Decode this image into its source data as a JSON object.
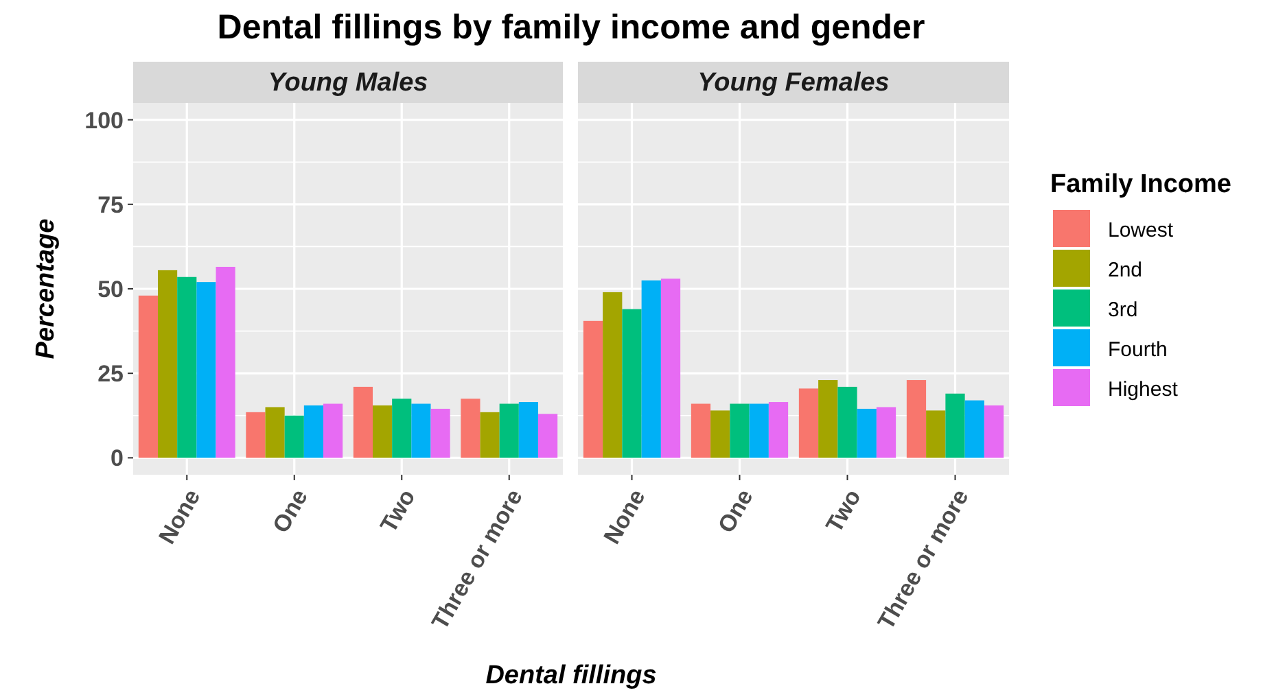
{
  "chart_data": [
    {
      "type": "bar",
      "title": "Dental fillings by family income and gender",
      "subtitle": "Young Males",
      "xlabel": "Dental fillings",
      "ylabel": "Percentage",
      "legend_title": "Family Income",
      "legend": "right",
      "categories": [
        "None",
        "One",
        "Two",
        "Three or more"
      ],
      "ylim": [
        -5,
        105
      ],
      "yticks": [
        0,
        25,
        50,
        75,
        100
      ],
      "grid": true,
      "series": [
        {
          "name": "Lowest",
          "color": "#f8766d",
          "values": [
            48,
            13.5,
            21,
            17.5
          ]
        },
        {
          "name": "2nd",
          "color": "#a3a500",
          "values": [
            55.5,
            15,
            15.5,
            13.5
          ]
        },
        {
          "name": "3rd",
          "color": "#00bf7d",
          "values": [
            53.5,
            12.5,
            17.5,
            16
          ]
        },
        {
          "name": "Fourth",
          "color": "#00b0f6",
          "values": [
            52,
            15.5,
            16,
            16.5
          ]
        },
        {
          "name": "Highest",
          "color": "#e76bf3",
          "values": [
            56.5,
            16,
            14.5,
            13
          ]
        }
      ]
    },
    {
      "type": "bar",
      "subtitle": "Young Females",
      "tick_labels": "x",
      "categories": [
        "None",
        "One",
        "Two",
        "Three or more"
      ],
      "ylim": [
        -5,
        105
      ],
      "yticks": [
        0,
        25,
        50,
        75,
        100
      ],
      "grid": true,
      "series": [
        {
          "color": "#f8766d",
          "values": [
            40.5,
            16,
            20.5,
            23
          ]
        },
        {
          "color": "#a3a500",
          "values": [
            49,
            14,
            23,
            14
          ]
        },
        {
          "color": "#00bf7d",
          "values": [
            44,
            16,
            21,
            19
          ]
        },
        {
          "color": "#00b0f6",
          "values": [
            52.5,
            16,
            14.5,
            17
          ]
        },
        {
          "color": "#e76bf3",
          "values": [
            53,
            16.5,
            15,
            15.5
          ]
        }
      ]
    }
  ]
}
